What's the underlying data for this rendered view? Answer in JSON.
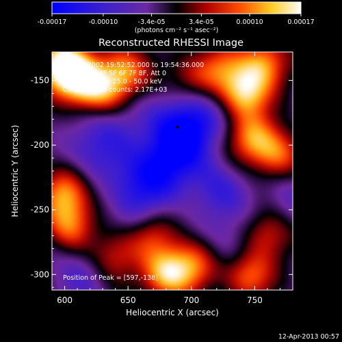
{
  "chart_data": {
    "type": "heatmap",
    "title": "Reconstructed RHESSI Image",
    "xlabel": "Heliocentric X (arcsec)",
    "ylabel": "Heliocentric Y (arcsec)",
    "xlim": [
      590,
      780
    ],
    "ylim": [
      -312,
      -128
    ],
    "x_ticks": [
      "600",
      "650",
      "700",
      "750"
    ],
    "x_tick_values": [
      600,
      650,
      700,
      750
    ],
    "y_ticks": [
      "-300",
      "-250",
      "-200",
      "-150"
    ],
    "y_tick_values": [
      -300,
      -250,
      -200,
      -150
    ],
    "colorbar": {
      "ticks": [
        "-0.00017",
        "-0.00010",
        "-3.4e-05",
        "3.4e-05",
        "0.00010",
        "0.00017"
      ],
      "tick_values": [
        -0.00017,
        -0.0001,
        -3.4e-05,
        3.4e-05,
        0.0001,
        0.00017
      ],
      "range": [
        -0.00017,
        0.00017
      ],
      "unit_label": "(photons cm⁻² s⁻¹ asec⁻²)",
      "colormap": "blue-purple-black-red-orange-yellow-white"
    },
    "annotations": [
      "23-Feb-2002 19:52:52.000 to 19:54:36.000",
      "Detectors: 4F 5F 6F 7F 8F, Att 0",
      "Energy Range: 25.0 - 50.0 keV",
      "Clean     Total counts: 2.17E+03"
    ],
    "peak_label": "Position of Peak = [597,-138]",
    "peak_marker_position": [
      689,
      -186
    ],
    "features": [
      {
        "type": "positive",
        "x": 597,
        "y": -138,
        "amp": 1.0
      },
      {
        "type": "positive",
        "x": 612,
        "y": -150,
        "amp": 0.8
      },
      {
        "type": "positive",
        "x": 630,
        "y": -160,
        "amp": 0.6
      },
      {
        "type": "positive",
        "x": 647,
        "y": -143,
        "amp": 0.7
      },
      {
        "type": "positive",
        "x": 600,
        "y": -237,
        "amp": 0.7
      },
      {
        "type": "positive",
        "x": 604,
        "y": -262,
        "amp": 0.6
      },
      {
        "type": "positive",
        "x": 640,
        "y": -285,
        "amp": 0.5
      },
      {
        "type": "positive",
        "x": 668,
        "y": -268,
        "amp": 0.55
      },
      {
        "type": "positive",
        "x": 680,
        "y": -300,
        "amp": 0.8
      },
      {
        "type": "positive",
        "x": 702,
        "y": -292,
        "amp": 0.6
      },
      {
        "type": "positive",
        "x": 742,
        "y": -160,
        "amp": 0.85
      },
      {
        "type": "positive",
        "x": 758,
        "y": -137,
        "amp": 0.7
      },
      {
        "type": "positive",
        "x": 748,
        "y": -195,
        "amp": 0.65
      },
      {
        "type": "positive",
        "x": 768,
        "y": -208,
        "amp": 0.6
      },
      {
        "type": "positive",
        "x": 760,
        "y": -270,
        "amp": 0.55
      },
      {
        "type": "positive",
        "x": 745,
        "y": -300,
        "amp": 0.7
      },
      {
        "type": "positive",
        "x": 722,
        "y": -140,
        "amp": 0.5
      },
      {
        "type": "positive",
        "x": 700,
        "y": -150,
        "amp": 0.4
      },
      {
        "type": "negative",
        "x": 692,
        "y": -192,
        "amp": 0.9
      },
      {
        "type": "negative",
        "x": 678,
        "y": -215,
        "amp": 0.8
      },
      {
        "type": "negative",
        "x": 705,
        "y": -175,
        "amp": 0.6
      },
      {
        "type": "negative",
        "x": 657,
        "y": -232,
        "amp": 0.55
      },
      {
        "type": "negative",
        "x": 622,
        "y": -205,
        "amp": 0.5
      },
      {
        "type": "negative",
        "x": 720,
        "y": -235,
        "amp": 0.55
      },
      {
        "type": "negative",
        "x": 640,
        "y": -180,
        "amp": 0.45
      },
      {
        "type": "negative",
        "x": 612,
        "y": -300,
        "amp": 0.4
      },
      {
        "type": "negative",
        "x": 735,
        "y": -280,
        "amp": 0.45
      },
      {
        "type": "negative",
        "x": 660,
        "y": -258,
        "amp": 0.4
      },
      {
        "type": "negative",
        "x": 775,
        "y": -240,
        "amp": 0.35
      }
    ]
  },
  "footer_date": "12-Apr-2013 00:57"
}
